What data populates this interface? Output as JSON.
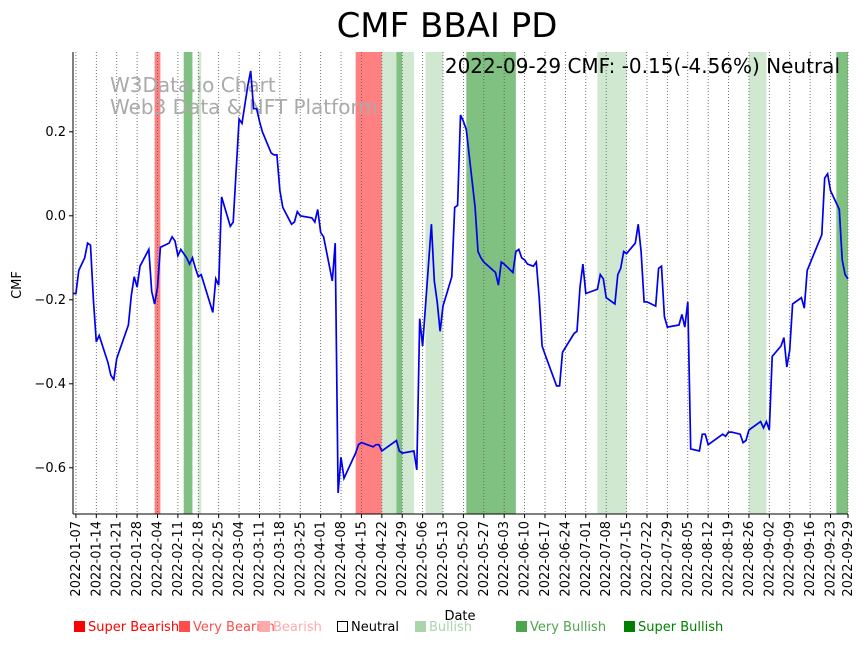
{
  "chart_data": {
    "type": "line",
    "title": "CMF BBAI PD",
    "xlabel": "Date",
    "ylabel": "CMF",
    "ylim": [
      -0.71,
      0.39
    ],
    "yticks": [
      -0.6,
      -0.4,
      -0.2,
      0.0,
      0.2
    ],
    "ytick_labels": [
      "−0.6",
      "−0.4",
      "−0.2",
      "0.0",
      "0.2"
    ],
    "x_range": [
      "2022-01-06",
      "2022-09-29"
    ],
    "xtick_labels": [
      "2022-01-07",
      "2022-01-14",
      "2022-01-21",
      "2022-01-28",
      "2022-02-04",
      "2022-02-11",
      "2022-02-18",
      "2022-02-25",
      "2022-03-04",
      "2022-03-11",
      "2022-03-18",
      "2022-03-25",
      "2022-04-01",
      "2022-04-08",
      "2022-04-15",
      "2022-04-22",
      "2022-04-29",
      "2022-05-06",
      "2022-05-13",
      "2022-05-20",
      "2022-05-27",
      "2022-06-03",
      "2022-06-10",
      "2022-06-17",
      "2022-06-24",
      "2022-07-01",
      "2022-07-08",
      "2022-07-15",
      "2022-07-22",
      "2022-07-29",
      "2022-08-05",
      "2022-08-12",
      "2022-08-19",
      "2022-08-26",
      "2022-09-02",
      "2022-09-09",
      "2022-09-16",
      "2022-09-23",
      "2022-09-29"
    ],
    "annotation": "2022-09-29 CMF: -0.15(-4.56%) Neutral",
    "watermark": [
      "W3Data.io Chart",
      "Web3 Data & NFT Platform"
    ],
    "line_color": "#0000ee",
    "series": [
      {
        "name": "CMF",
        "points": [
          [
            "2022-01-06",
            -0.185
          ],
          [
            "2022-01-07",
            -0.185
          ],
          [
            "2022-01-08",
            -0.13
          ],
          [
            "2022-01-10",
            -0.1
          ],
          [
            "2022-01-11",
            -0.065
          ],
          [
            "2022-01-12",
            -0.07
          ],
          [
            "2022-01-13",
            -0.2
          ],
          [
            "2022-01-14",
            -0.3
          ],
          [
            "2022-01-15",
            -0.285
          ],
          [
            "2022-01-18",
            -0.35
          ],
          [
            "2022-01-19",
            -0.38
          ],
          [
            "2022-01-20",
            -0.39
          ],
          [
            "2022-01-21",
            -0.34
          ],
          [
            "2022-01-25",
            -0.26
          ],
          [
            "2022-01-26",
            -0.19
          ],
          [
            "2022-01-27",
            -0.145
          ],
          [
            "2022-01-28",
            -0.17
          ],
          [
            "2022-01-29",
            -0.12
          ],
          [
            "2022-02-01",
            -0.08
          ],
          [
            "2022-02-02",
            -0.18
          ],
          [
            "2022-02-03",
            -0.21
          ],
          [
            "2022-02-04",
            -0.17
          ],
          [
            "2022-02-05",
            -0.075
          ],
          [
            "2022-02-08",
            -0.065
          ],
          [
            "2022-02-09",
            -0.05
          ],
          [
            "2022-02-10",
            -0.06
          ],
          [
            "2022-02-11",
            -0.095
          ],
          [
            "2022-02-12",
            -0.08
          ],
          [
            "2022-02-14",
            -0.1
          ],
          [
            "2022-02-15",
            -0.115
          ],
          [
            "2022-02-16",
            -0.1
          ],
          [
            "2022-02-17",
            -0.125
          ],
          [
            "2022-02-18",
            -0.145
          ],
          [
            "2022-02-19",
            -0.14
          ],
          [
            "2022-02-23",
            -0.23
          ],
          [
            "2022-02-24",
            -0.15
          ],
          [
            "2022-02-25",
            -0.165
          ],
          [
            "2022-02-26",
            0.045
          ],
          [
            "2022-03-01",
            -0.025
          ],
          [
            "2022-03-02",
            -0.015
          ],
          [
            "2022-03-04",
            0.23
          ],
          [
            "2022-03-05",
            0.22
          ],
          [
            "2022-03-07",
            0.31
          ],
          [
            "2022-03-08",
            0.345
          ],
          [
            "2022-03-09",
            0.255
          ],
          [
            "2022-03-10",
            0.255
          ],
          [
            "2022-03-11",
            0.225
          ],
          [
            "2022-03-12",
            0.2
          ],
          [
            "2022-03-15",
            0.15
          ],
          [
            "2022-03-16",
            0.145
          ],
          [
            "2022-03-17",
            0.145
          ],
          [
            "2022-03-18",
            0.06
          ],
          [
            "2022-03-19",
            0.02
          ],
          [
            "2022-03-22",
            -0.02
          ],
          [
            "2022-03-23",
            -0.015
          ],
          [
            "2022-03-24",
            0.01
          ],
          [
            "2022-03-25",
            0.0
          ],
          [
            "2022-03-29",
            -0.005
          ],
          [
            "2022-03-30",
            -0.015
          ],
          [
            "2022-03-31",
            0.015
          ],
          [
            "2022-04-01",
            -0.04
          ],
          [
            "2022-04-02",
            -0.05
          ],
          [
            "2022-04-05",
            -0.155
          ],
          [
            "2022-04-06",
            -0.065
          ],
          [
            "2022-04-07",
            -0.66
          ],
          [
            "2022-04-08",
            -0.575
          ],
          [
            "2022-04-09",
            -0.625
          ],
          [
            "2022-04-12",
            -0.58
          ],
          [
            "2022-04-13",
            -0.565
          ],
          [
            "2022-04-14",
            -0.545
          ],
          [
            "2022-04-15",
            -0.54
          ],
          [
            "2022-04-19",
            -0.55
          ],
          [
            "2022-04-20",
            -0.545
          ],
          [
            "2022-04-21",
            -0.545
          ],
          [
            "2022-04-22",
            -0.56
          ],
          [
            "2022-04-23",
            -0.555
          ],
          [
            "2022-04-27",
            -0.535
          ],
          [
            "2022-04-28",
            -0.56
          ],
          [
            "2022-04-29",
            -0.565
          ],
          [
            "2022-05-03",
            -0.56
          ],
          [
            "2022-05-04",
            -0.605
          ],
          [
            "2022-05-05",
            -0.245
          ],
          [
            "2022-05-06",
            -0.31
          ],
          [
            "2022-05-09",
            -0.02
          ],
          [
            "2022-05-10",
            -0.155
          ],
          [
            "2022-05-11",
            -0.205
          ],
          [
            "2022-05-12",
            -0.275
          ],
          [
            "2022-05-13",
            -0.215
          ],
          [
            "2022-05-16",
            -0.145
          ],
          [
            "2022-05-17",
            0.02
          ],
          [
            "2022-05-18",
            0.025
          ],
          [
            "2022-05-19",
            0.24
          ],
          [
            "2022-05-20",
            0.225
          ],
          [
            "2022-05-21",
            0.205
          ],
          [
            "2022-05-24",
            0.02
          ],
          [
            "2022-05-25",
            -0.085
          ],
          [
            "2022-05-26",
            -0.1
          ],
          [
            "2022-05-27",
            -0.11
          ],
          [
            "2022-05-31",
            -0.135
          ],
          [
            "2022-06-01",
            -0.165
          ],
          [
            "2022-06-02",
            -0.11
          ],
          [
            "2022-06-03",
            -0.115
          ],
          [
            "2022-06-06",
            -0.135
          ],
          [
            "2022-06-07",
            -0.085
          ],
          [
            "2022-06-08",
            -0.08
          ],
          [
            "2022-06-09",
            -0.1
          ],
          [
            "2022-06-10",
            -0.105
          ],
          [
            "2022-06-11",
            -0.115
          ],
          [
            "2022-06-13",
            -0.12
          ],
          [
            "2022-06-14",
            -0.11
          ],
          [
            "2022-06-15",
            -0.195
          ],
          [
            "2022-06-16",
            -0.31
          ],
          [
            "2022-06-17",
            -0.33
          ],
          [
            "2022-06-21",
            -0.405
          ],
          [
            "2022-06-22",
            -0.405
          ],
          [
            "2022-06-23",
            -0.325
          ],
          [
            "2022-06-27",
            -0.28
          ],
          [
            "2022-06-28",
            -0.275
          ],
          [
            "2022-06-29",
            -0.17
          ],
          [
            "2022-06-30",
            -0.115
          ],
          [
            "2022-07-01",
            -0.185
          ],
          [
            "2022-07-05",
            -0.175
          ],
          [
            "2022-07-06",
            -0.14
          ],
          [
            "2022-07-07",
            -0.15
          ],
          [
            "2022-07-08",
            -0.195
          ],
          [
            "2022-07-11",
            -0.21
          ],
          [
            "2022-07-12",
            -0.14
          ],
          [
            "2022-07-13",
            -0.125
          ],
          [
            "2022-07-14",
            -0.085
          ],
          [
            "2022-07-15",
            -0.09
          ],
          [
            "2022-07-18",
            -0.065
          ],
          [
            "2022-07-19",
            -0.02
          ],
          [
            "2022-07-20",
            -0.085
          ],
          [
            "2022-07-21",
            -0.205
          ],
          [
            "2022-07-22",
            -0.205
          ],
          [
            "2022-07-25",
            -0.215
          ],
          [
            "2022-07-26",
            -0.125
          ],
          [
            "2022-07-27",
            -0.12
          ],
          [
            "2022-07-28",
            -0.24
          ],
          [
            "2022-07-29",
            -0.265
          ],
          [
            "2022-08-02",
            -0.26
          ],
          [
            "2022-08-03",
            -0.235
          ],
          [
            "2022-08-04",
            -0.265
          ],
          [
            "2022-08-05",
            -0.205
          ],
          [
            "2022-08-06",
            -0.555
          ],
          [
            "2022-08-09",
            -0.56
          ],
          [
            "2022-08-10",
            -0.52
          ],
          [
            "2022-08-11",
            -0.52
          ],
          [
            "2022-08-12",
            -0.545
          ],
          [
            "2022-08-13",
            -0.54
          ],
          [
            "2022-08-16",
            -0.525
          ],
          [
            "2022-08-17",
            -0.52
          ],
          [
            "2022-08-18",
            -0.525
          ],
          [
            "2022-08-19",
            -0.515
          ],
          [
            "2022-08-20",
            -0.515
          ],
          [
            "2022-08-23",
            -0.52
          ],
          [
            "2022-08-24",
            -0.54
          ],
          [
            "2022-08-25",
            -0.535
          ],
          [
            "2022-08-26",
            -0.51
          ],
          [
            "2022-08-30",
            -0.49
          ],
          [
            "2022-08-31",
            -0.505
          ],
          [
            "2022-09-01",
            -0.49
          ],
          [
            "2022-09-02",
            -0.51
          ],
          [
            "2022-09-03",
            -0.335
          ],
          [
            "2022-09-06",
            -0.31
          ],
          [
            "2022-09-07",
            -0.29
          ],
          [
            "2022-09-08",
            -0.36
          ],
          [
            "2022-09-09",
            -0.32
          ],
          [
            "2022-09-10",
            -0.21
          ],
          [
            "2022-09-13",
            -0.195
          ],
          [
            "2022-09-14",
            -0.22
          ],
          [
            "2022-09-15",
            -0.13
          ],
          [
            "2022-09-20",
            -0.045
          ],
          [
            "2022-09-21",
            0.09
          ],
          [
            "2022-09-22",
            0.1
          ],
          [
            "2022-09-23",
            0.06
          ],
          [
            "2022-09-26",
            0.015
          ],
          [
            "2022-09-27",
            -0.105
          ],
          [
            "2022-09-28",
            -0.14
          ],
          [
            "2022-09-29",
            -0.15
          ]
        ]
      }
    ],
    "bands": [
      {
        "start": "2022-02-03",
        "end": "2022-02-05",
        "class": "Very Bearish"
      },
      {
        "start": "2022-02-13",
        "end": "2022-02-16",
        "class": "Very Bullish"
      },
      {
        "start": "2022-02-18",
        "end": "2022-02-19",
        "class": "Bullish"
      },
      {
        "start": "2022-04-13",
        "end": "2022-04-22",
        "class": "Very Bearish"
      },
      {
        "start": "2022-04-22",
        "end": "2022-04-25",
        "class": "Bullish"
      },
      {
        "start": "2022-04-25",
        "end": "2022-04-27",
        "class": "Bullish"
      },
      {
        "start": "2022-04-27",
        "end": "2022-04-29",
        "class": "Very Bullish"
      },
      {
        "start": "2022-04-29",
        "end": "2022-05-03",
        "class": "Bullish"
      },
      {
        "start": "2022-05-07",
        "end": "2022-05-13",
        "class": "Bullish"
      },
      {
        "start": "2022-05-21",
        "end": "2022-06-07",
        "class": "Very Bullish"
      },
      {
        "start": "2022-07-05",
        "end": "2022-07-15",
        "class": "Bullish"
      },
      {
        "start": "2022-08-26",
        "end": "2022-09-01",
        "class": "Bullish"
      },
      {
        "start": "2022-09-25",
        "end": "2022-09-29",
        "class": "Very Bullish"
      }
    ],
    "band_colors": {
      "Very Bearish": "#ff8080",
      "Bullish": "#cfe8cf",
      "Very Bullish": "#80c080"
    },
    "legend": [
      {
        "label": "Super Bearish",
        "color": "#ff0000"
      },
      {
        "label": "Very Bearish",
        "color": "#ff4d4d"
      },
      {
        "label": "Bearish",
        "color": "#ffaaaa"
      },
      {
        "label": "Neutral",
        "color": "#000000",
        "hollow": true
      },
      {
        "label": "Bullish",
        "color": "#aad4aa"
      },
      {
        "label": "Very Bullish",
        "color": "#4ca64c"
      },
      {
        "label": "Super Bullish",
        "color": "#008000"
      }
    ]
  }
}
